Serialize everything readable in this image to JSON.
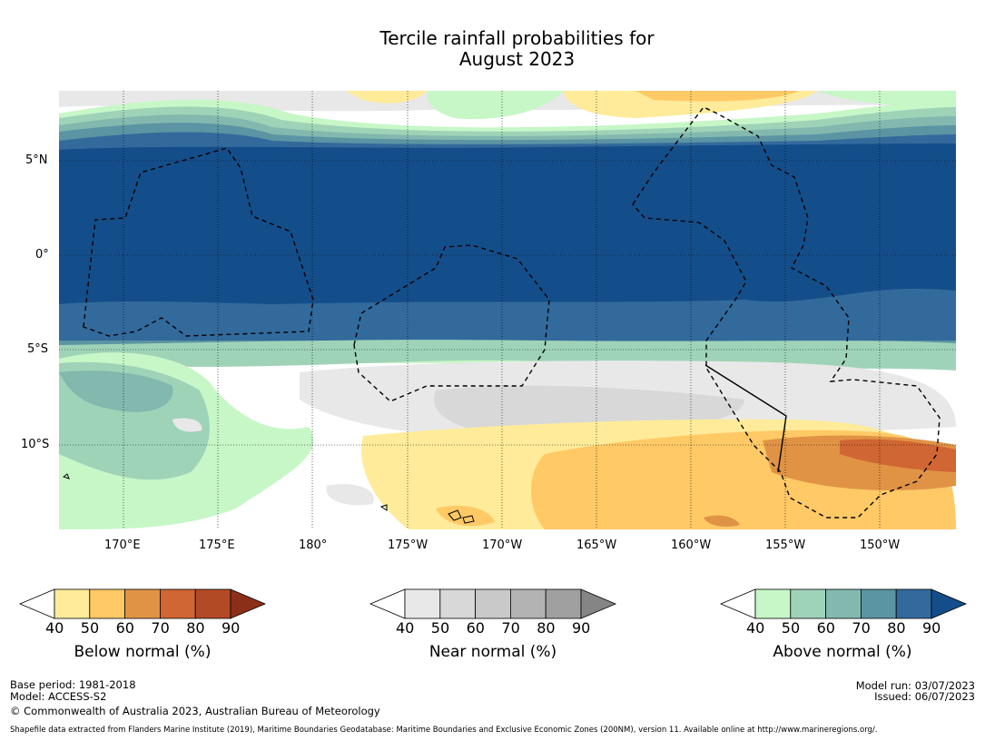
{
  "title": {
    "line1": "Tercile rainfall probabilities for",
    "line2": "August 2023"
  },
  "map": {
    "lat_labels": [
      "5°N",
      "0°",
      "5°S",
      "10°S"
    ],
    "lon_labels": [
      "170°E",
      "175°E",
      "180°",
      "175°W",
      "170°W",
      "165°W",
      "160°W",
      "155°W",
      "150°W"
    ],
    "colors": {
      "above": [
        "#c7f7c7",
        "#9fd3b8",
        "#82b8ae",
        "#5b94a3",
        "#336a9c",
        "#144e8a"
      ],
      "near": [
        "#e8e8e8",
        "#d8d8d8",
        "#c9c9c9",
        "#b3b3b3",
        "#a0a0a0",
        "#858585"
      ],
      "below": [
        "#ffeb99",
        "#ffc966",
        "#e09345",
        "#d06633",
        "#b34a26",
        "#8c2f19"
      ]
    }
  },
  "colorbars": [
    {
      "id": "below",
      "title": "Below normal (%)",
      "ticks": [
        "40",
        "50",
        "60",
        "70",
        "80",
        "90"
      ]
    },
    {
      "id": "near",
      "title": "Near normal (%)",
      "ticks": [
        "40",
        "50",
        "60",
        "70",
        "80",
        "90"
      ]
    },
    {
      "id": "above",
      "title": "Above normal (%)",
      "ticks": [
        "40",
        "50",
        "60",
        "70",
        "80",
        "90"
      ]
    }
  ],
  "footer": {
    "base_period": "Base period: 1981-2018",
    "model": "Model: ACCESS-S2",
    "copyright": "© Commonwealth of Australia 2023, Australian Bureau of Meteorology",
    "model_run": "Model run: 03/07/2023",
    "issued": "Issued: 06/07/2023",
    "shapefile": "Shapefile data extracted from Flanders Marine Institute (2019), Maritime Boundaries Geodatabase: Maritime Boundaries and Exclusive Economic Zones (200NM), version 11. Available online at http://www.marineregions.org/."
  }
}
